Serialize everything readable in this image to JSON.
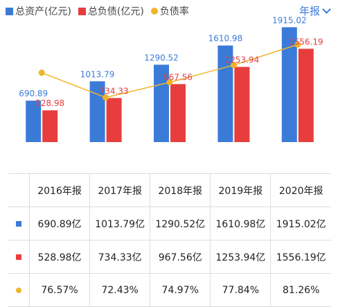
{
  "colors": {
    "assets": "#3b7bd8",
    "liabilities": "#e83d3d",
    "ratio": "#f0b429",
    "accent": "#3b7bd8"
  },
  "legend": {
    "assets": "总资产(亿元)",
    "liabilities": "总负债(亿元)",
    "ratio": "负债率"
  },
  "period_selector": {
    "label": "年报"
  },
  "chart_data": {
    "type": "bar",
    "categories": [
      "2016年报",
      "2017年报",
      "2018年报",
      "2019年报",
      "2020年报"
    ],
    "series": [
      {
        "name": "总资产(亿元)",
        "type": "bar",
        "values": [
          690.89,
          1013.79,
          1290.52,
          1610.98,
          1915.02
        ]
      },
      {
        "name": "总负债(亿元)",
        "type": "bar",
        "values": [
          528.98,
          734.33,
          967.56,
          1253.94,
          1556.19
        ]
      },
      {
        "name": "负债率",
        "type": "line",
        "values": [
          76.57,
          72.43,
          74.97,
          77.84,
          81.26
        ]
      }
    ],
    "data_labels": {
      "assets": [
        "690.89",
        "1013.79",
        "1290.52",
        "1610.98",
        "1915.02"
      ],
      "liabilities": [
        "528.98",
        "734.33",
        "967.56",
        "1253.94",
        "1556.19"
      ]
    },
    "ylim": [
      0,
      2000
    ],
    "y2lim": [
      65,
      85
    ],
    "legend_position": "top-left"
  },
  "table": {
    "header": [
      "2016年报",
      "2017年报",
      "2018年报",
      "2019年报",
      "2020年报"
    ],
    "rows": [
      {
        "key": "assets",
        "cells": [
          "690.89亿",
          "1013.79亿",
          "1290.52亿",
          "1610.98亿",
          "1915.02亿"
        ]
      },
      {
        "key": "liabilities",
        "cells": [
          "528.98亿",
          "734.33亿",
          "967.56亿",
          "1253.94亿",
          "1556.19亿"
        ]
      },
      {
        "key": "ratio",
        "cells": [
          "76.57%",
          "72.43%",
          "74.97%",
          "77.84%",
          "81.26%"
        ]
      }
    ]
  }
}
